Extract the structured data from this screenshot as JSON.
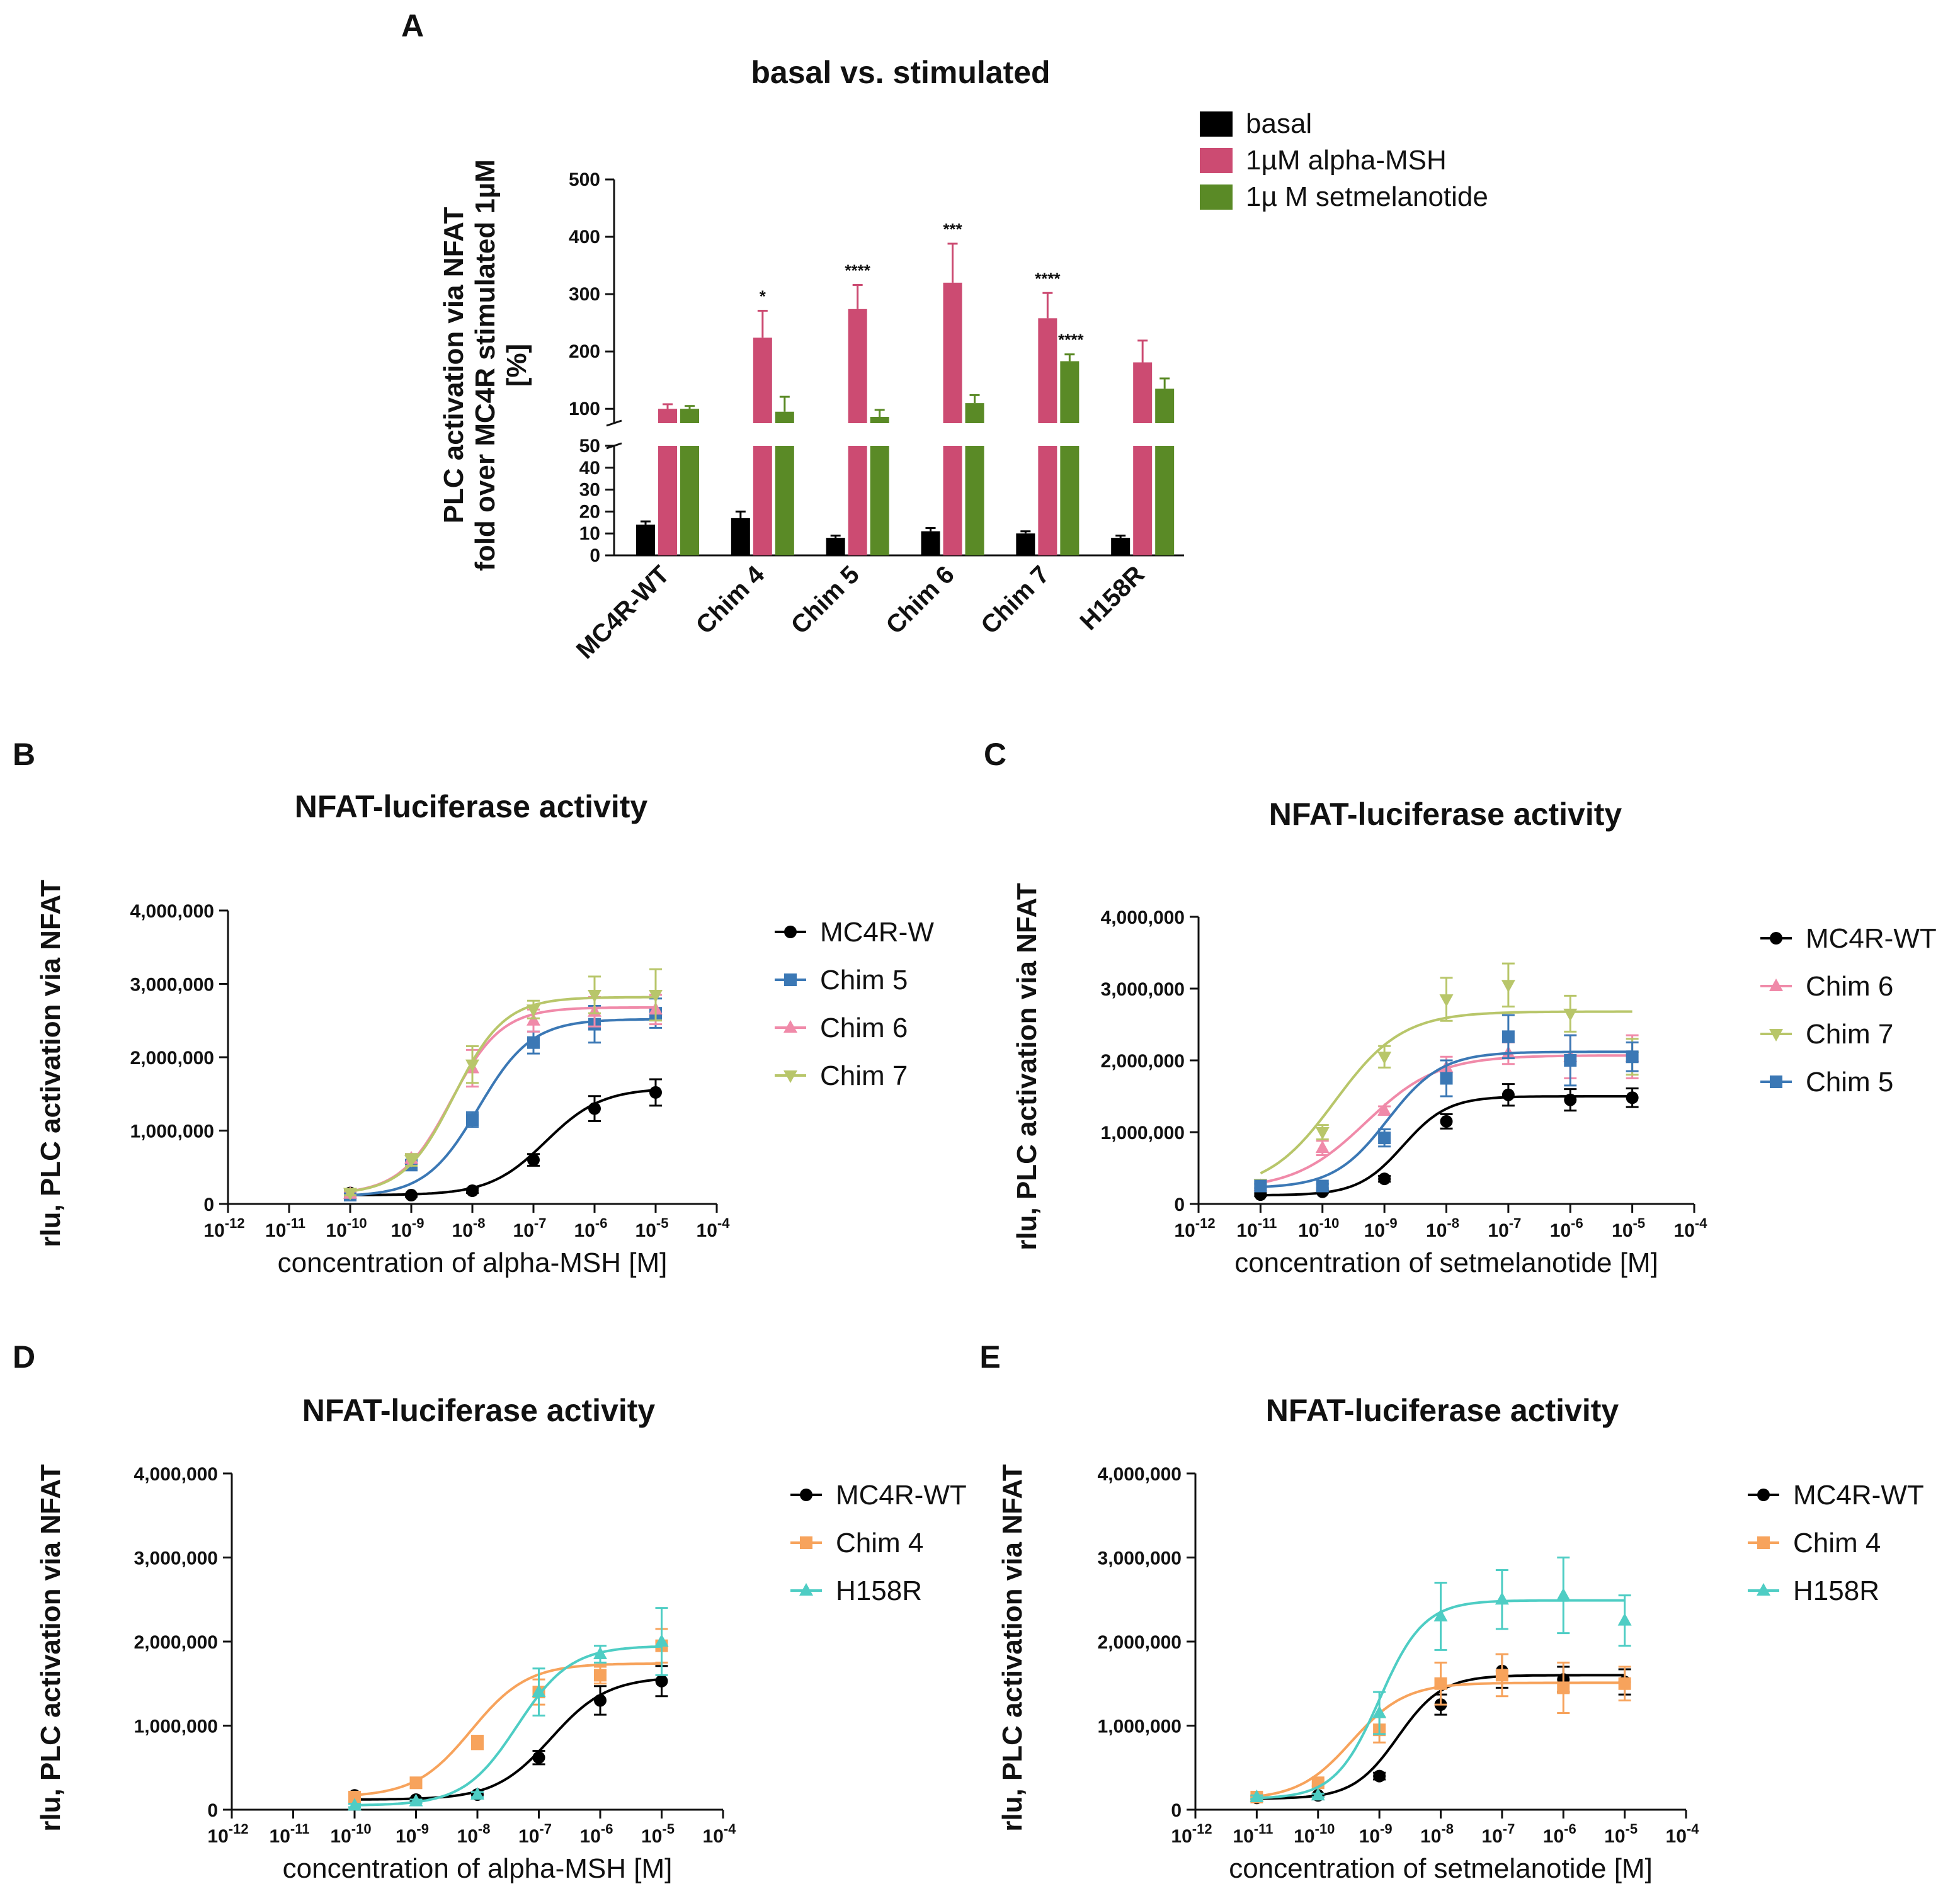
{
  "chart_data": [
    {
      "panel": "A",
      "type": "bar",
      "title": "basal vs. stimulated",
      "ylabel_lines": [
        "PLC activation via NFAT",
        "fold over MC4R stimulated 1µM",
        "[%]"
      ],
      "categories": [
        "MC4R-WT",
        "Chim 4",
        "Chim 5",
        "Chim 6",
        "Chim 7",
        "H158R"
      ],
      "yaxis_lower": {
        "range": [
          0,
          50
        ],
        "ticks": [
          "0",
          "10",
          "20",
          "30",
          "40",
          "50"
        ]
      },
      "yaxis_upper": {
        "range": [
          75,
          500
        ],
        "ticks": [
          "100",
          "200",
          "300",
          "400",
          "500"
        ]
      },
      "series": [
        {
          "name": "basal",
          "color": "#000000",
          "values": [
            14,
            17,
            8,
            11,
            10,
            8
          ],
          "errors": [
            1.5,
            3,
            1,
            1.5,
            1,
            1
          ]
        },
        {
          "name": "1µM alpha-MSH",
          "color": "#cc4b72",
          "values": [
            100,
            224,
            274,
            320,
            258,
            181
          ],
          "errors": [
            8,
            47,
            42,
            68,
            44,
            38
          ]
        },
        {
          "name": "1µ M setmelanotide",
          "color": "#5a8a26",
          "values": [
            100,
            95,
            86,
            110,
            183,
            135
          ],
          "errors": [
            5,
            26,
            12,
            14,
            12,
            18
          ]
        }
      ],
      "significance": [
        {
          "category": "Chim 4",
          "series": "1µM alpha-MSH",
          "label": "*"
        },
        {
          "category": "Chim 5",
          "series": "1µM alpha-MSH",
          "label": "****"
        },
        {
          "category": "Chim 6",
          "series": "1µM alpha-MSH",
          "label": "***"
        },
        {
          "category": "Chim 7",
          "series": "1µM alpha-MSH",
          "label": "****"
        },
        {
          "category": "Chim 7",
          "series": "1µ M setmelanotide",
          "label": "****"
        }
      ]
    },
    {
      "panel": "B",
      "type": "line",
      "title": "NFAT-luciferase activity",
      "xlabel": "concentration of alpha-MSH [M]",
      "ylabel": "rlu, PLC activation via NFAT",
      "xscale": "log10",
      "xlim_exp": [
        -12,
        -4
      ],
      "ylim": [
        0,
        4000000
      ],
      "yticks": [
        "0",
        "1,000,000",
        "2,000,000",
        "3,000,000",
        "4,000,000"
      ],
      "series": [
        {
          "name": "MC4R-W",
          "color": "#000000",
          "marker": "circle",
          "x_exp": [
            -10,
            -9,
            -8,
            -7,
            -6,
            -5
          ],
          "y": [
            150000,
            120000,
            180000,
            600000,
            1300000,
            1520000
          ],
          "err": [
            30000,
            20000,
            30000,
            80000,
            170000,
            180000
          ],
          "fit": {
            "bottom": 120000,
            "top": 1580000,
            "logEC50": -6.8,
            "hill": 0.95
          }
        },
        {
          "name": "Chim 5",
          "color": "#3b78b5",
          "marker": "square",
          "x_exp": [
            -10,
            -9,
            -8,
            -7,
            -6,
            -5
          ],
          "y": [
            120000,
            530000,
            1150000,
            2200000,
            2450000,
            2600000
          ],
          "err": [
            30000,
            60000,
            100000,
            150000,
            250000,
            200000
          ],
          "fit": {
            "bottom": 100000,
            "top": 2520000,
            "logEC50": -7.9,
            "hill": 1.0
          }
        },
        {
          "name": "Chim 6",
          "color": "#f08aa9",
          "marker": "triangle-up",
          "x_exp": [
            -10,
            -9,
            -8,
            -7,
            -6,
            -5
          ],
          "y": [
            140000,
            620000,
            1850000,
            2500000,
            2620000,
            2650000
          ],
          "err": [
            30000,
            60000,
            250000,
            150000,
            200000,
            200000
          ],
          "fit": {
            "bottom": 130000,
            "top": 2680000,
            "logEC50": -8.35,
            "hill": 1.05
          }
        },
        {
          "name": "Chim 7",
          "color": "#b8c66a",
          "marker": "triangle-down",
          "x_exp": [
            -10,
            -9,
            -8,
            -7,
            -6,
            -5
          ],
          "y": [
            150000,
            600000,
            1900000,
            2650000,
            2850000,
            2850000
          ],
          "err": [
            30000,
            80000,
            250000,
            120000,
            250000,
            350000
          ],
          "fit": {
            "bottom": 130000,
            "top": 2820000,
            "logEC50": -8.3,
            "hill": 1.05
          }
        }
      ]
    },
    {
      "panel": "C",
      "type": "line",
      "title": "NFAT-luciferase activity",
      "xlabel": "concentration of setmelanotide [M]",
      "ylabel": "rlu, PLC activation via NFAT",
      "xscale": "log10",
      "xlim_exp": [
        -12,
        -4
      ],
      "ylim": [
        0,
        4000000
      ],
      "yticks": [
        "0",
        "1,000,000",
        "2,000,000",
        "3,000,000",
        "4,000,000"
      ],
      "series": [
        {
          "name": "MC4R-WT",
          "color": "#000000",
          "marker": "circle",
          "x_exp": [
            -11,
            -10,
            -9,
            -8,
            -7,
            -6,
            -5
          ],
          "y": [
            130000,
            170000,
            350000,
            1150000,
            1520000,
            1450000,
            1480000
          ],
          "err": [
            20000,
            20000,
            40000,
            100000,
            150000,
            150000,
            130000
          ],
          "fit": {
            "bottom": 120000,
            "top": 1500000,
            "logEC50": -8.7,
            "hill": 1.2
          }
        },
        {
          "name": "Chim 6",
          "color": "#f08aa9",
          "marker": "triangle-up",
          "x_exp": [
            -11,
            -10,
            -9,
            -8,
            -7,
            -6,
            -5
          ],
          "y": [
            250000,
            780000,
            1300000,
            1900000,
            2100000,
            2050000,
            2050000
          ],
          "err": [
            30000,
            100000,
            60000,
            150000,
            150000,
            300000,
            300000
          ],
          "fit": {
            "bottom": 200000,
            "top": 2070000,
            "logEC50": -9.3,
            "hill": 0.75
          }
        },
        {
          "name": "Chim 7",
          "color": "#b8c66a",
          "marker": "triangle-down",
          "x_exp": [
            -11,
            -10,
            -9,
            -8,
            -7,
            -6,
            -5
          ],
          "y": [
            280000,
            1000000,
            2050000,
            2850000,
            3050000,
            2650000,
            2050000
          ],
          "err": [
            30000,
            100000,
            150000,
            300000,
            300000,
            250000,
            250000
          ],
          "fit": {
            "bottom": 180000,
            "top": 2680000,
            "logEC50": -9.8,
            "hill": 0.8
          }
        },
        {
          "name": "Chim 5",
          "color": "#3b78b5",
          "marker": "square",
          "x_exp": [
            -11,
            -10,
            -9,
            -8,
            -7,
            -6,
            -5
          ],
          "y": [
            250000,
            250000,
            920000,
            1750000,
            2330000,
            2000000,
            2050000
          ],
          "err": [
            30000,
            30000,
            120000,
            250000,
            300000,
            350000,
            200000
          ],
          "fit": {
            "bottom": 220000,
            "top": 2120000,
            "logEC50": -8.95,
            "hill": 1.0
          }
        }
      ]
    },
    {
      "panel": "D",
      "type": "line",
      "title": "NFAT-luciferase activity",
      "xlabel": "concentration of alpha-MSH [M]",
      "ylabel": "rlu, PLC activation via NFAT",
      "xscale": "log10",
      "xlim_exp": [
        -12,
        -4
      ],
      "ylim": [
        0,
        4000000
      ],
      "yticks": [
        "0",
        "1,000,000",
        "2,000,000",
        "3,000,000",
        "4,000,000"
      ],
      "series": [
        {
          "name": "MC4R-WT",
          "color": "#000000",
          "marker": "circle",
          "x_exp": [
            -10,
            -9,
            -8,
            -7,
            -6,
            -5
          ],
          "y": [
            170000,
            120000,
            180000,
            620000,
            1300000,
            1530000
          ],
          "err": [
            20000,
            20000,
            30000,
            80000,
            170000,
            180000
          ],
          "fit": {
            "bottom": 120000,
            "top": 1580000,
            "logEC50": -6.8,
            "hill": 0.95
          }
        },
        {
          "name": "Chim 4",
          "color": "#f7a35c",
          "marker": "square",
          "x_exp": [
            -10,
            -9,
            -8,
            -7,
            -6,
            -5
          ],
          "y": [
            150000,
            320000,
            800000,
            1400000,
            1600000,
            1950000
          ],
          "err": [
            30000,
            40000,
            80000,
            150000,
            100000,
            200000
          ],
          "fit": {
            "bottom": 150000,
            "top": 1740000,
            "logEC50": -8.1,
            "hill": 0.95
          }
        },
        {
          "name": "H158R",
          "color": "#4ecdc4",
          "marker": "triangle-up",
          "x_exp": [
            -10,
            -9,
            -8,
            -7,
            -6,
            -5
          ],
          "y": [
            50000,
            100000,
            180000,
            1400000,
            1850000,
            2000000
          ],
          "err": [
            20000,
            20000,
            30000,
            280000,
            100000,
            400000
          ],
          "fit": {
            "bottom": 50000,
            "top": 1950000,
            "logEC50": -7.35,
            "hill": 1.0
          }
        }
      ]
    },
    {
      "panel": "E",
      "type": "line",
      "title": "NFAT-luciferase activity",
      "xlabel": "concentration of setmelanotide [M]",
      "ylabel": "rlu, PLC activation via NFAT",
      "xscale": "log10",
      "xlim_exp": [
        -12,
        -4
      ],
      "ylim": [
        0,
        4000000
      ],
      "yticks": [
        "0",
        "1,000,000",
        "2,000,000",
        "3,000,000",
        "4,000,000"
      ],
      "series": [
        {
          "name": "MC4R-WT",
          "color": "#000000",
          "marker": "circle",
          "x_exp": [
            -11,
            -10,
            -9,
            -8,
            -7,
            -6,
            -5
          ],
          "y": [
            140000,
            170000,
            400000,
            1250000,
            1650000,
            1550000,
            1520000
          ],
          "err": [
            20000,
            20000,
            40000,
            120000,
            200000,
            150000,
            150000
          ],
          "fit": {
            "bottom": 130000,
            "top": 1600000,
            "logEC50": -8.7,
            "hill": 1.2
          }
        },
        {
          "name": "Chim 4",
          "color": "#f7a35c",
          "marker": "square",
          "x_exp": [
            -11,
            -10,
            -9,
            -8,
            -7,
            -6,
            -5
          ],
          "y": [
            150000,
            320000,
            950000,
            1500000,
            1600000,
            1450000,
            1500000
          ],
          "err": [
            20000,
            40000,
            150000,
            250000,
            250000,
            300000,
            200000
          ],
          "fit": {
            "bottom": 120000,
            "top": 1510000,
            "logEC50": -9.45,
            "hill": 1.0
          }
        },
        {
          "name": "H158R",
          "color": "#4ecdc4",
          "marker": "triangle-up",
          "x_exp": [
            -11,
            -10,
            -9,
            -8,
            -7,
            -6,
            -5
          ],
          "y": [
            150000,
            170000,
            1150000,
            2300000,
            2500000,
            2550000,
            2250000
          ],
          "err": [
            20000,
            20000,
            250000,
            400000,
            350000,
            450000,
            300000
          ],
          "fit": {
            "bottom": 130000,
            "top": 2490000,
            "logEC50": -9.0,
            "hill": 1.2
          }
        }
      ]
    }
  ]
}
